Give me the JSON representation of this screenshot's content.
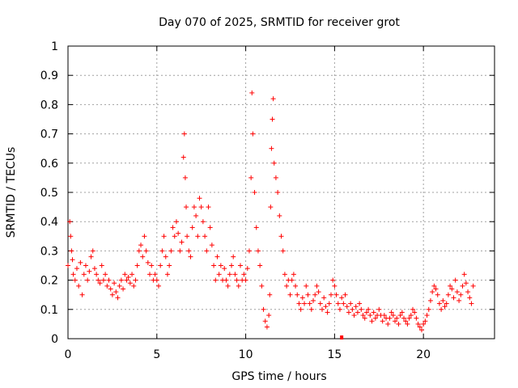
{
  "chart_data": {
    "type": "scatter",
    "title": "Day 070 of 2025, SRMTID for receiver grot",
    "xlabel": "GPS time / hours",
    "ylabel": "SRMTID / TECUs",
    "xlim": [
      0,
      24
    ],
    "ylim": [
      0,
      1
    ],
    "xticks": [
      0,
      5,
      10,
      15,
      20
    ],
    "xtick_labels": [
      "0",
      "5",
      "10",
      "15",
      "20"
    ],
    "yticks": [
      0,
      0.1,
      0.2,
      0.3,
      0.4,
      0.5,
      0.6,
      0.7,
      0.8,
      0.9,
      1
    ],
    "ytick_labels": [
      "0",
      "0.1",
      "0.2",
      "0.3",
      "0.4",
      "0.5",
      "0.6",
      "0.7",
      "0.8",
      "0.9",
      "1"
    ],
    "grid": true,
    "marker": "+",
    "color": "#ff0000",
    "series": [
      {
        "name": "SRMTID",
        "x": [
          0.0,
          0.1,
          0.15,
          0.2,
          0.25,
          0.3,
          0.4,
          0.5,
          0.6,
          0.7,
          0.8,
          0.9,
          1.0,
          1.1,
          1.2,
          1.3,
          1.4,
          1.5,
          1.6,
          1.7,
          1.8,
          1.9,
          2.0,
          2.1,
          2.2,
          2.3,
          2.4,
          2.5,
          2.6,
          2.7,
          2.8,
          2.9,
          3.0,
          3.1,
          3.2,
          3.3,
          3.4,
          3.5,
          3.6,
          3.7,
          3.8,
          3.9,
          4.0,
          4.1,
          4.2,
          4.3,
          4.4,
          4.5,
          4.6,
          4.7,
          4.8,
          4.9,
          5.0,
          5.1,
          5.2,
          5.3,
          5.4,
          5.5,
          5.6,
          5.7,
          5.8,
          5.9,
          6.0,
          6.1,
          6.2,
          6.3,
          6.4,
          6.5,
          6.55,
          6.6,
          6.65,
          6.7,
          6.8,
          6.9,
          7.0,
          7.1,
          7.2,
          7.3,
          7.4,
          7.5,
          7.6,
          7.7,
          7.8,
          7.9,
          8.0,
          8.1,
          8.2,
          8.3,
          8.4,
          8.5,
          8.6,
          8.7,
          8.8,
          8.9,
          9.0,
          9.1,
          9.2,
          9.3,
          9.4,
          9.5,
          9.6,
          9.7,
          9.8,
          9.9,
          10.0,
          10.1,
          10.2,
          10.3,
          10.35,
          10.4,
          10.5,
          10.6,
          10.7,
          10.8,
          10.9,
          11.0,
          11.1,
          11.2,
          11.3,
          11.35,
          11.4,
          11.45,
          11.5,
          11.55,
          11.6,
          11.7,
          11.8,
          11.9,
          12.0,
          12.1,
          12.2,
          12.3,
          12.4,
          12.5,
          12.6,
          12.7,
          12.8,
          12.9,
          13.0,
          13.1,
          13.2,
          13.3,
          13.4,
          13.5,
          13.6,
          13.7,
          13.8,
          13.9,
          14.0,
          14.1,
          14.2,
          14.3,
          14.4,
          14.5,
          14.6,
          14.7,
          14.8,
          14.9,
          15.0,
          15.1,
          15.2,
          15.3,
          15.4,
          15.5,
          15.6,
          15.7,
          15.8,
          15.9,
          16.0,
          16.1,
          16.2,
          16.3,
          16.4,
          16.5,
          16.6,
          16.7,
          16.8,
          16.9,
          17.0,
          17.1,
          17.2,
          17.3,
          17.4,
          17.5,
          17.6,
          17.7,
          17.8,
          17.9,
          18.0,
          18.1,
          18.2,
          18.3,
          18.4,
          18.5,
          18.6,
          18.7,
          18.8,
          18.9,
          19.0,
          19.1,
          19.2,
          19.3,
          19.4,
          19.5,
          19.6,
          19.7,
          19.8,
          19.9,
          20.0,
          20.1,
          20.2,
          20.3,
          20.4,
          20.5,
          20.6,
          20.7,
          20.8,
          20.9,
          21.0,
          21.1,
          21.2,
          21.3,
          21.4,
          21.5,
          21.6,
          21.7,
          21.8,
          21.9,
          22.0,
          22.1,
          22.2,
          22.3,
          22.4,
          22.5,
          22.6,
          22.7,
          22.8
        ],
        "y": [
          0.25,
          0.4,
          0.35,
          0.3,
          0.27,
          0.22,
          0.2,
          0.24,
          0.18,
          0.26,
          0.15,
          0.22,
          0.25,
          0.2,
          0.23,
          0.28,
          0.3,
          0.24,
          0.22,
          0.2,
          0.19,
          0.25,
          0.2,
          0.22,
          0.18,
          0.2,
          0.17,
          0.15,
          0.19,
          0.16,
          0.14,
          0.18,
          0.2,
          0.17,
          0.22,
          0.2,
          0.21,
          0.19,
          0.22,
          0.18,
          0.2,
          0.25,
          0.3,
          0.32,
          0.28,
          0.35,
          0.3,
          0.26,
          0.22,
          0.25,
          0.2,
          0.22,
          0.2,
          0.18,
          0.25,
          0.3,
          0.35,
          0.28,
          0.22,
          0.25,
          0.3,
          0.38,
          0.35,
          0.4,
          0.36,
          0.3,
          0.33,
          0.62,
          0.7,
          0.55,
          0.45,
          0.35,
          0.3,
          0.28,
          0.38,
          0.45,
          0.42,
          0.35,
          0.48,
          0.45,
          0.4,
          0.35,
          0.3,
          0.45,
          0.38,
          0.32,
          0.25,
          0.2,
          0.28,
          0.22,
          0.25,
          0.2,
          0.24,
          0.2,
          0.18,
          0.22,
          0.25,
          0.28,
          0.22,
          0.2,
          0.18,
          0.25,
          0.2,
          0.22,
          0.2,
          0.24,
          0.3,
          0.55,
          0.84,
          0.7,
          0.5,
          0.38,
          0.3,
          0.25,
          0.18,
          0.1,
          0.06,
          0.04,
          0.08,
          0.15,
          0.45,
          0.65,
          0.75,
          0.82,
          0.6,
          0.55,
          0.5,
          0.42,
          0.35,
          0.3,
          0.22,
          0.18,
          0.2,
          0.15,
          0.2,
          0.22,
          0.18,
          0.15,
          0.12,
          0.1,
          0.14,
          0.12,
          0.18,
          0.15,
          0.12,
          0.1,
          0.13,
          0.15,
          0.18,
          0.16,
          0.12,
          0.1,
          0.14,
          0.11,
          0.09,
          0.12,
          0.15,
          0.2,
          0.18,
          0.15,
          0.12,
          0.1,
          0.14,
          0.12,
          0.15,
          0.11,
          0.09,
          0.12,
          0.1,
          0.08,
          0.11,
          0.09,
          0.12,
          0.1,
          0.08,
          0.07,
          0.09,
          0.1,
          0.08,
          0.06,
          0.09,
          0.07,
          0.08,
          0.1,
          0.08,
          0.06,
          0.08,
          0.07,
          0.05,
          0.07,
          0.09,
          0.08,
          0.06,
          0.07,
          0.05,
          0.08,
          0.09,
          0.07,
          0.06,
          0.05,
          0.07,
          0.08,
          0.1,
          0.09,
          0.07,
          0.05,
          0.04,
          0.03,
          0.05,
          0.06,
          0.08,
          0.1,
          0.13,
          0.16,
          0.18,
          0.17,
          0.15,
          0.12,
          0.1,
          0.13,
          0.11,
          0.12,
          0.15,
          0.18,
          0.17,
          0.14,
          0.2,
          0.16,
          0.13,
          0.15,
          0.18,
          0.22,
          0.19,
          0.16,
          0.14,
          0.12,
          0.18
        ],
        "highlight_point": {
          "x": 15.4,
          "y": 0.0
        }
      }
    ]
  }
}
